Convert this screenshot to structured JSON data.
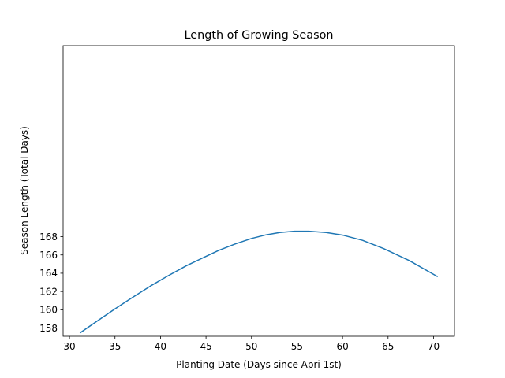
{
  "chart_data": {
    "type": "line",
    "title": "Length of Growing Season",
    "xlabel": "Planting Date (Days since Apri 1st)",
    "ylabel": "Season Length (Total Days)",
    "xlim": [
      29.3,
      72.3
    ],
    "ylim": [
      157.1,
      188.9
    ],
    "xticks": [
      30,
      35,
      40,
      45,
      50,
      55,
      60,
      65,
      70
    ],
    "yticks": [
      158,
      160,
      162,
      164,
      166,
      168
    ],
    "grid": false,
    "series": [
      {
        "color": "#1f77b4",
        "x": [
          31.2,
          33.1,
          35.0,
          37.0,
          38.9,
          40.8,
          42.8,
          44.7,
          46.4,
          48.2,
          50.0,
          51.6,
          53.1,
          54.7,
          56.3,
          58.2,
          60.1,
          62.2,
          64.5,
          67.3,
          70.4
        ],
        "y": [
          157.5,
          158.8,
          160.1,
          161.4,
          162.6,
          163.7,
          164.8,
          165.7,
          166.5,
          167.2,
          167.8,
          168.2,
          168.45,
          168.6,
          168.6,
          168.45,
          168.15,
          167.6,
          166.7,
          165.4,
          163.65
        ]
      }
    ]
  }
}
